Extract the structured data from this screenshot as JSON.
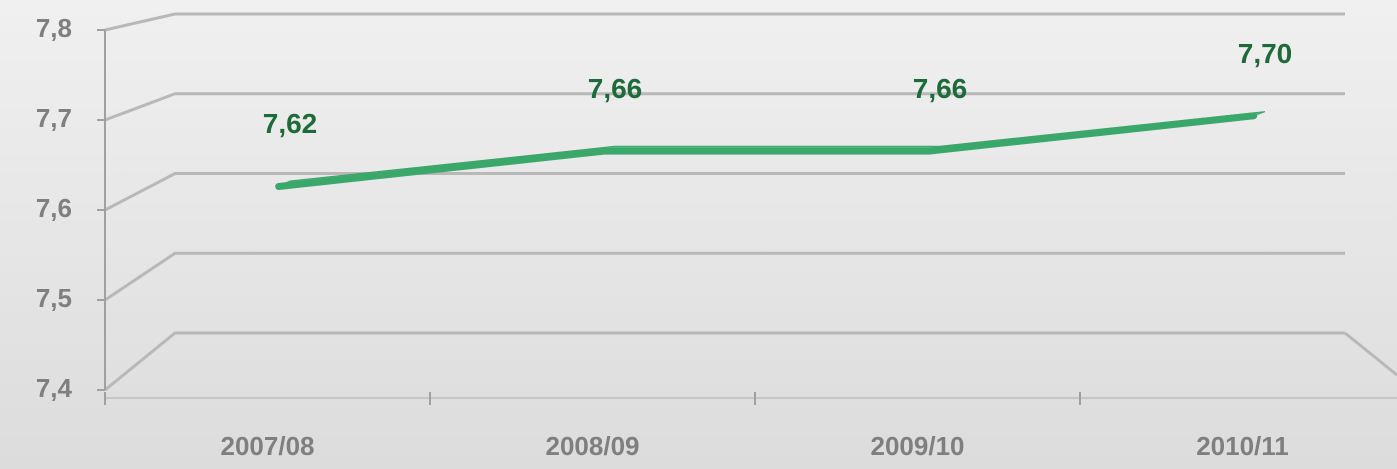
{
  "chart_data": {
    "type": "line",
    "categories": [
      "2007/08",
      "2008/09",
      "2009/10",
      "2010/11"
    ],
    "series": [
      {
        "name": null,
        "color": "#5cc48a",
        "values": [
          7.62,
          7.66,
          7.66,
          7.7
        ],
        "value_labels": [
          "7,62",
          "7,66",
          "7,66",
          "7,70"
        ]
      }
    ],
    "ylim": [
      7.4,
      7.8
    ],
    "yticks": [
      {
        "value": 7.4,
        "label": "7,4"
      },
      {
        "value": 7.5,
        "label": "7,5"
      },
      {
        "value": 7.6,
        "label": "7,6"
      },
      {
        "value": 7.7,
        "label": "7,7"
      },
      {
        "value": 7.8,
        "label": "7,8"
      }
    ],
    "grid": true
  }
}
